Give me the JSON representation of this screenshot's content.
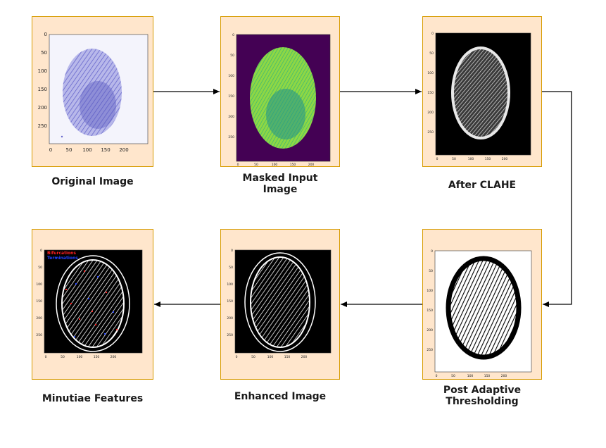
{
  "steps": [
    {
      "caption": "Original Image"
    },
    {
      "caption": "Masked Input\nImage"
    },
    {
      "caption": "After CLAHE"
    },
    {
      "caption": "Post Adaptive\nThresholding"
    },
    {
      "caption": "Enhanced Image"
    },
    {
      "caption": "Minutiae Features"
    }
  ],
  "original_plot": {
    "y_ticks": [
      "0",
      "50",
      "100",
      "150",
      "200",
      "250"
    ],
    "x_ticks": [
      "0",
      "50",
      "100",
      "150",
      "200"
    ]
  },
  "small_plot": {
    "y_ticks": [
      "0",
      "50",
      "100",
      "150",
      "200",
      "250"
    ],
    "x_ticks": [
      "0",
      "50",
      "100",
      "150",
      "200"
    ]
  },
  "minutiae_legend": {
    "bifurcation": "Bifurcations",
    "termination": "Terminations"
  },
  "colors": {
    "panel_fill": "#ffe6cc",
    "panel_border": "#d79b00",
    "arrow": "#000000",
    "bifurcation": "#ff2020",
    "termination": "#2040ff"
  }
}
